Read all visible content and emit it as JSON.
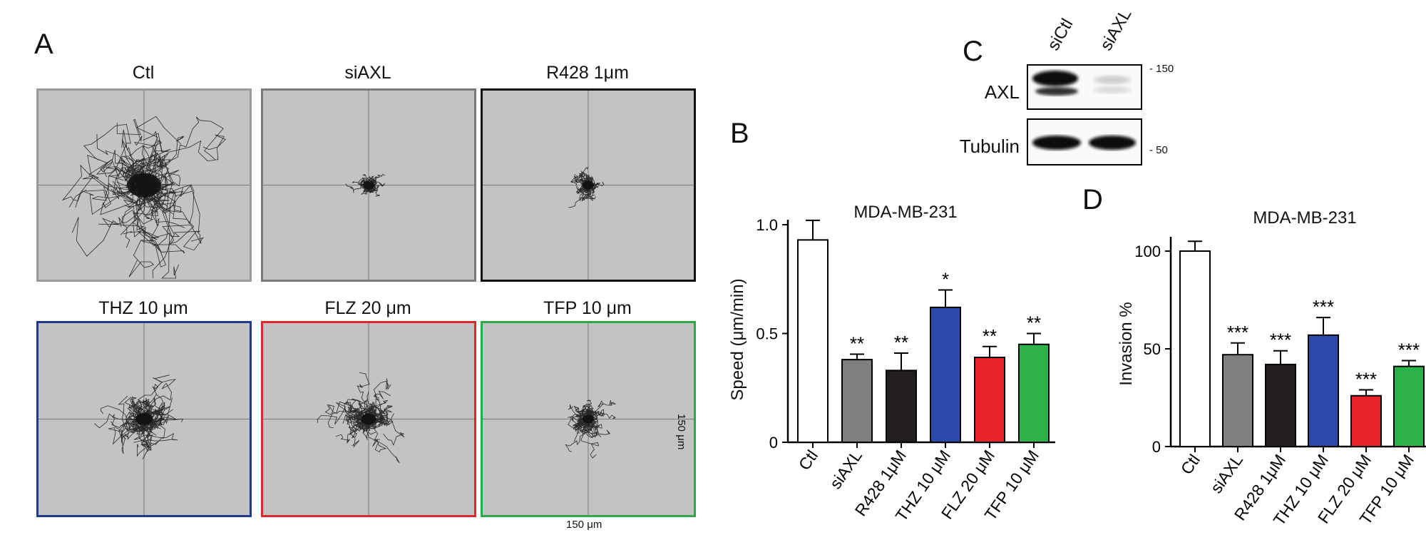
{
  "panels": {
    "A": "A",
    "B": "B",
    "C": "C",
    "D": "D"
  },
  "tracking": {
    "plots": [
      {
        "title": "Ctl",
        "border": "#9a9a9a",
        "spread": 1.0
      },
      {
        "title": "siAXL",
        "border": "#7a7a7a",
        "spread": 0.18
      },
      {
        "title": "R428 1μm",
        "border": "#111111",
        "spread": 0.2
      },
      {
        "title": "THZ 10 μm",
        "border": "#1f3a8f",
        "spread": 0.5
      },
      {
        "title": "FLZ 20 μm",
        "border": "#e0252b",
        "spread": 0.45
      },
      {
        "title": "TFP 10 μm",
        "border": "#2fa84a",
        "spread": 0.3
      }
    ],
    "scale_x": "150 μm",
    "scale_y": "150 μm"
  },
  "blot": {
    "lanes": [
      "siCtl",
      "siAXL"
    ],
    "rows": [
      "AXL",
      "Tubulin"
    ],
    "markers": [
      "- 150",
      "- 50"
    ]
  },
  "chart_data": [
    {
      "type": "bar",
      "title": "MDA-MB-231",
      "ylabel": "Speed (μm/min)",
      "xlabel": "",
      "categories": [
        "Ctl",
        "siAXL",
        "R428 1μM",
        "THZ 10 μM",
        "FLZ 20 μM",
        "TFP 10 μM"
      ],
      "values": [
        0.93,
        0.38,
        0.33,
        0.62,
        0.39,
        0.45
      ],
      "errors": [
        0.09,
        0.025,
        0.08,
        0.08,
        0.05,
        0.05
      ],
      "significance": [
        "",
        "**",
        "**",
        "*",
        "**",
        "**"
      ],
      "colors": [
        "#ffffff",
        "#7f7f7f",
        "#231f20",
        "#2e4aa8",
        "#e8232a",
        "#2db24a"
      ],
      "ylim": [
        0,
        1.0
      ],
      "yticks": [
        "0",
        "0.5",
        "1.0"
      ],
      "ytick_values": [
        0,
        0.5,
        1.0
      ]
    },
    {
      "type": "bar",
      "title": "MDA-MB-231",
      "ylabel": "Invasion %",
      "xlabel": "",
      "categories": [
        "Ctl",
        "siAXL",
        "R428 1μM",
        "THZ 10 μM",
        "FLZ 20 μM",
        "TFP 10 μM"
      ],
      "values": [
        100,
        47,
        42,
        57,
        26,
        41
      ],
      "errors": [
        5,
        6,
        7,
        9,
        3,
        3
      ],
      "significance": [
        "",
        "***",
        "***",
        "***",
        "***",
        "***"
      ],
      "colors": [
        "#ffffff",
        "#7f7f7f",
        "#231f20",
        "#2e4aa8",
        "#e8232a",
        "#2db24a"
      ],
      "ylim": [
        0,
        100
      ],
      "yticks": [
        "0",
        "50",
        "100"
      ],
      "ytick_values": [
        0,
        50,
        100
      ]
    }
  ]
}
